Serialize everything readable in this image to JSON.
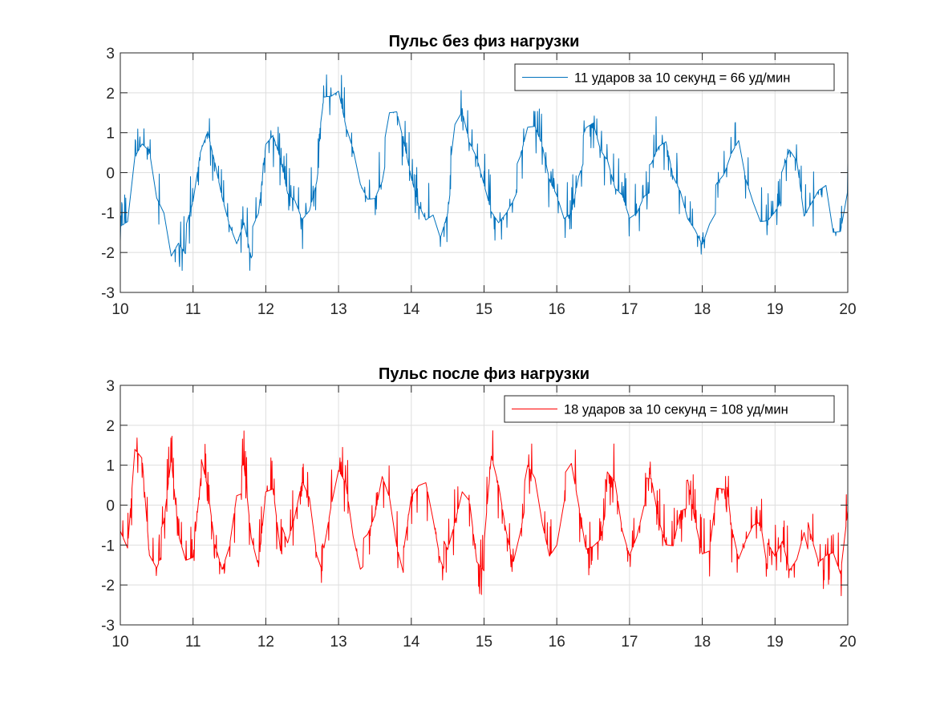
{
  "chart_data": [
    {
      "type": "line",
      "title": "Пульс без физ нагрузки",
      "xlabel": "",
      "ylabel": "",
      "xlim": [
        10,
        20
      ],
      "ylim": [
        -3,
        3
      ],
      "xticks": [
        10,
        11,
        12,
        13,
        14,
        15,
        16,
        17,
        18,
        19,
        20
      ],
      "yticks": [
        3,
        2,
        1,
        0,
        -1,
        -2,
        -3
      ],
      "grid": true,
      "legend_position": "top-right",
      "series": [
        {
          "name": "11 ударов за 10 секунд = 66 уд/мин",
          "color": "#0072bd",
          "beat_period_s": 0.909,
          "x": [
            10.0,
            10.1,
            10.2,
            10.3,
            10.4,
            10.5,
            10.6,
            10.7,
            10.8,
            10.9,
            11.0,
            11.1,
            11.2,
            11.3,
            11.4,
            11.5,
            11.6,
            11.7,
            11.8,
            11.9,
            12.0,
            12.1,
            12.2,
            12.3,
            12.4,
            12.5,
            12.6,
            12.7,
            12.8,
            12.9,
            13.0,
            13.1,
            13.2,
            13.3,
            13.4,
            13.5,
            13.6,
            13.7,
            13.8,
            13.9,
            14.0,
            14.1,
            14.2,
            14.3,
            14.4,
            14.5,
            14.6,
            14.7,
            14.8,
            14.9,
            15.0,
            15.1,
            15.2,
            15.3,
            15.4,
            15.5,
            15.6,
            15.7,
            15.8,
            15.9,
            16.0,
            16.1,
            16.2,
            16.3,
            16.4,
            16.5,
            16.6,
            16.7,
            16.8,
            16.9,
            17.0,
            17.1,
            17.2,
            17.3,
            17.4,
            17.5,
            17.6,
            17.7,
            17.8,
            17.9,
            18.0,
            18.1,
            18.2,
            18.3,
            18.4,
            18.5,
            18.6,
            18.7,
            18.8,
            18.9,
            19.0,
            19.1,
            19.2,
            19.3,
            19.4,
            19.5,
            19.6,
            19.7,
            19.8,
            19.9,
            20.0
          ],
          "y": [
            -1.7,
            -1.5,
            0.2,
            0.6,
            0.5,
            -0.6,
            -0.9,
            -1.9,
            -1.5,
            -1.7,
            -1.0,
            0.3,
            0.9,
            0.2,
            -0.6,
            -1.2,
            -1.6,
            -1.0,
            -1.8,
            -1.3,
            0.5,
            0.8,
            0.3,
            -0.5,
            -0.6,
            -1.0,
            -0.7,
            0.1,
            1.6,
            1.7,
            1.9,
            1.1,
            0.6,
            -0.2,
            -0.5,
            -0.4,
            0.1,
            1.2,
            1.3,
            0.6,
            -0.2,
            -0.8,
            -1.1,
            -0.9,
            -1.4,
            -0.7,
            0.9,
            1.3,
            0.6,
            0.3,
            -0.3,
            -0.9,
            -1.1,
            -0.8,
            -0.4,
            0.1,
            0.9,
            1.0,
            0.6,
            -0.2,
            -0.5,
            -1.0,
            -0.8,
            0.2,
            0.8,
            1.0,
            0.4,
            0.2,
            -0.4,
            -0.5,
            -1.0,
            -0.8,
            -0.3,
            -0.1,
            0.4,
            0.6,
            -0.2,
            -0.5,
            -1.1,
            -1.3,
            -1.6,
            -1.0,
            -0.6,
            -0.3,
            0.3,
            0.7,
            -0.2,
            -0.7,
            -1.1,
            -1.0,
            -0.7,
            -0.3,
            0.3,
            0.1,
            -1.2,
            -0.8,
            -0.4,
            -0.2,
            -1.3,
            -1.2,
            -0.1
          ]
        }
      ]
    },
    {
      "type": "line",
      "title": "Пульс после физ нагрузки",
      "xlabel": "",
      "ylabel": "",
      "xlim": [
        10,
        20
      ],
      "ylim": [
        -3,
        3
      ],
      "xticks": [
        10,
        11,
        12,
        13,
        14,
        15,
        16,
        17,
        18,
        19,
        20
      ],
      "yticks": [
        3,
        2,
        1,
        0,
        -1,
        -2,
        -3
      ],
      "grid": true,
      "legend_position": "top-right",
      "series": [
        {
          "name": "18 ударов за 10 секунд = 108 уд/мин",
          "color": "#ff0000",
          "beat_period_s": 0.556,
          "x": [
            10.0,
            10.1,
            10.2,
            10.3,
            10.4,
            10.5,
            10.6,
            10.7,
            10.8,
            10.9,
            11.0,
            11.1,
            11.2,
            11.3,
            11.4,
            11.5,
            11.6,
            11.7,
            11.8,
            11.9,
            12.0,
            12.1,
            12.2,
            12.3,
            12.4,
            12.5,
            12.6,
            12.7,
            12.8,
            12.9,
            13.0,
            13.1,
            13.2,
            13.3,
            13.4,
            13.5,
            13.6,
            13.7,
            13.8,
            13.9,
            14.0,
            14.1,
            14.2,
            14.3,
            14.4,
            14.5,
            14.6,
            14.7,
            14.8,
            14.9,
            15.0,
            15.1,
            15.2,
            15.3,
            15.4,
            15.5,
            15.6,
            15.7,
            15.8,
            15.9,
            16.0,
            16.1,
            16.2,
            16.3,
            16.4,
            16.5,
            16.6,
            16.7,
            16.8,
            16.9,
            17.0,
            17.1,
            17.2,
            17.3,
            17.4,
            17.5,
            17.6,
            17.7,
            17.8,
            17.9,
            18.0,
            18.1,
            18.2,
            18.3,
            18.4,
            18.5,
            18.6,
            18.7,
            18.8,
            18.9,
            19.0,
            19.1,
            19.2,
            19.3,
            19.4,
            19.5,
            19.6,
            19.7,
            19.8,
            19.9,
            20.0
          ],
          "y": [
            -1.0,
            -1.3,
            1.3,
            1.2,
            -1.1,
            -1.3,
            -0.7,
            1.0,
            -0.8,
            -1.3,
            -1.1,
            0.9,
            0.2,
            -1.1,
            -1.6,
            -0.9,
            0.5,
            0.7,
            -1.0,
            -1.6,
            0.4,
            0.6,
            -0.8,
            -1.2,
            -0.4,
            0.6,
            0.3,
            -1.0,
            -1.4,
            -0.2,
            0.8,
            0.6,
            -0.6,
            -1.3,
            -1.0,
            -0.4,
            0.7,
            0.3,
            -0.8,
            -1.4,
            0.0,
            0.4,
            0.6,
            -0.2,
            -1.1,
            -1.4,
            -0.6,
            0.3,
            0.2,
            -1.2,
            -1.3,
            1.0,
            0.4,
            -0.6,
            -1.3,
            -0.4,
            0.7,
            0.5,
            -0.5,
            -1.2,
            -0.8,
            0.4,
            0.8,
            -0.1,
            -1.1,
            -0.9,
            -0.6,
            0.5,
            0.4,
            -0.7,
            -1.2,
            -0.6,
            0.3,
            0.4,
            -0.5,
            -1.0,
            -0.9,
            0.1,
            0.3,
            -0.6,
            -1.3,
            -1.1,
            0.6,
            0.7,
            -0.8,
            -1.5,
            -0.9,
            -0.4,
            -0.2,
            -1.3,
            -1.5,
            -1.0,
            -1.6,
            -1.2,
            -0.4,
            -1.1,
            -1.6,
            -1.3,
            -1.1,
            -1.5,
            0.2
          ]
        }
      ]
    }
  ]
}
